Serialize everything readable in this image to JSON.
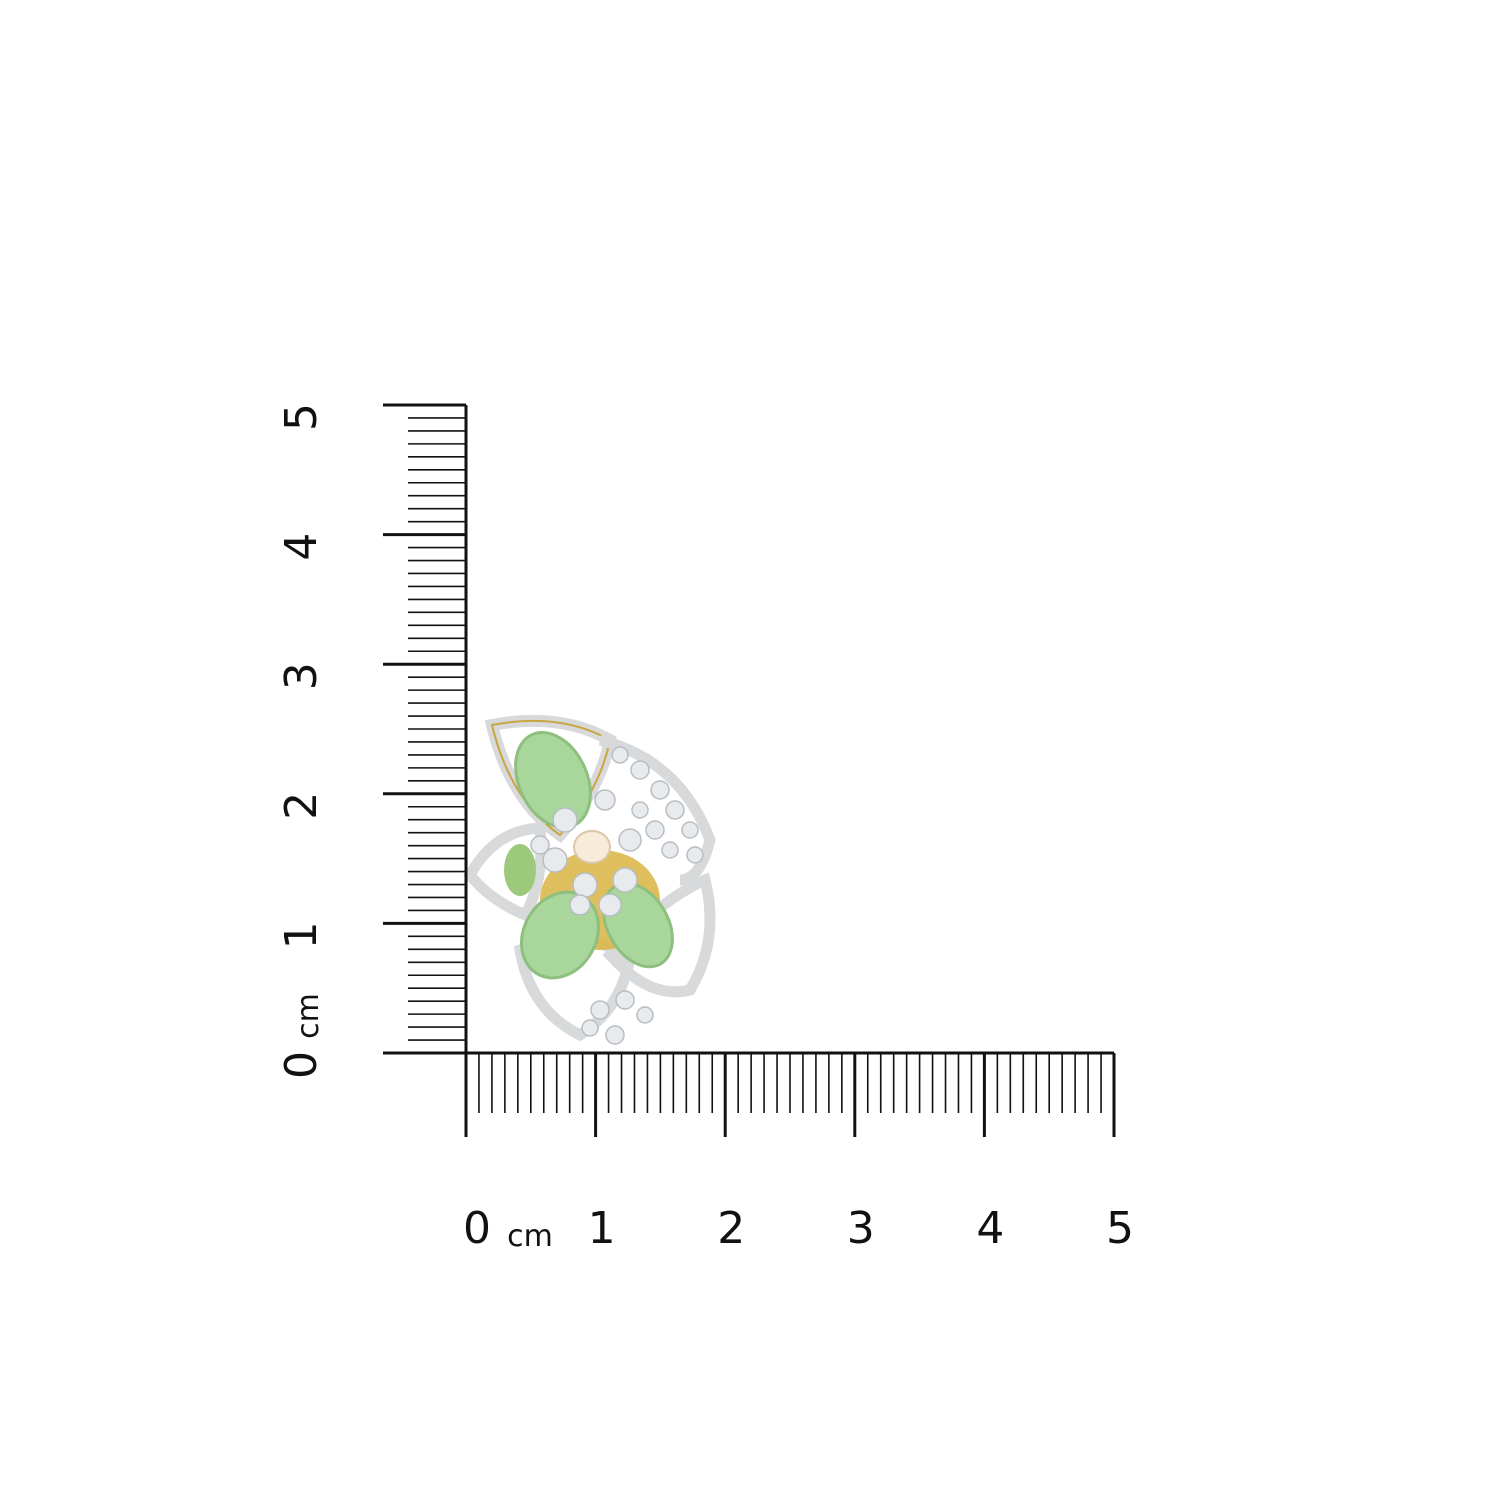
{
  "vertical_scale": {
    "unit": "cm",
    "labels": [
      "0",
      "1",
      "2",
      "3",
      "4",
      "5"
    ],
    "range_cm": [
      0,
      5
    ],
    "minor_divisions_per_cm": 10
  },
  "horizontal_scale": {
    "unit": "cm",
    "labels": [
      "0",
      "1",
      "2",
      "3",
      "4",
      "5"
    ],
    "range_cm": [
      0,
      5
    ],
    "minor_divisions_per_cm": 10
  },
  "product": {
    "type": "floral earring",
    "approx_size_cm": {
      "width": 1.9,
      "height": 2.6
    },
    "colors": {
      "stone": "#a9d69a",
      "metal": "#d9b441",
      "crystal": "#e8ebee",
      "pearl": "#f6ecd9"
    }
  }
}
